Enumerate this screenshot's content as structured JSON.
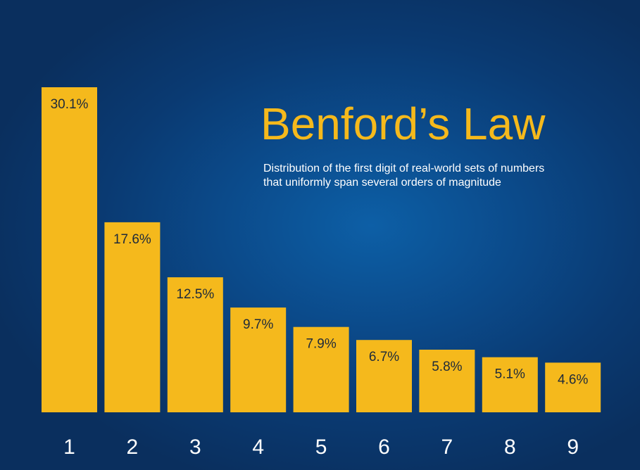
{
  "header": {
    "title": "Benford’s Law",
    "subtitle": "Distribution of the first digit of real-world sets of numbers\nthat uniformly span several orders of magnitude"
  },
  "colors": {
    "bar": "#f5b91c",
    "background": "#0b4a8a",
    "bar_label": "#1e2a3a",
    "tick_label": "#ffffff"
  },
  "chart_data": {
    "type": "bar",
    "title": "Benford’s Law",
    "subtitle": "Distribution of the first digit of real-world sets of numbers that uniformly span several orders of magnitude",
    "categories": [
      "1",
      "2",
      "3",
      "4",
      "5",
      "6",
      "7",
      "8",
      "9"
    ],
    "values": [
      30.1,
      17.6,
      12.5,
      9.7,
      7.9,
      6.7,
      5.8,
      5.1,
      4.6
    ],
    "value_labels": [
      "30.1%",
      "17.6%",
      "12.5%",
      "9.7%",
      "7.9%",
      "6.7%",
      "5.8%",
      "5.1%",
      "4.6%"
    ],
    "unit": "%",
    "ylim": [
      0,
      30.1
    ],
    "grid": false,
    "legend": "none"
  }
}
